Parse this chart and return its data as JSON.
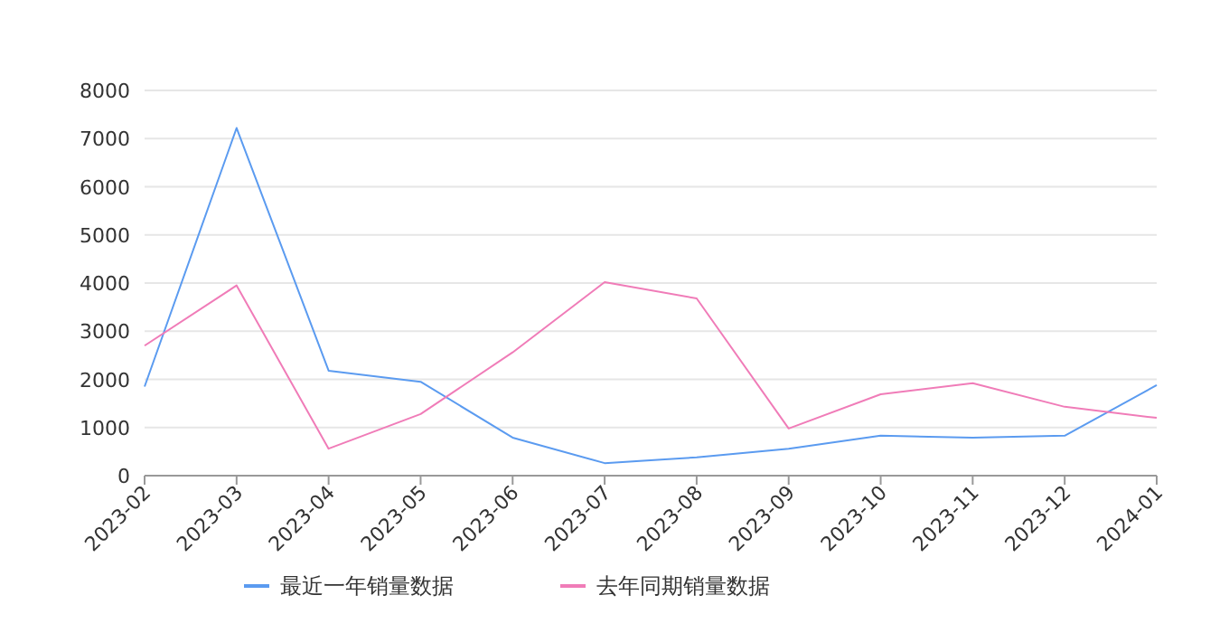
{
  "chart_data": {
    "type": "line",
    "categories": [
      "2023-02",
      "2023-03",
      "2023-04",
      "2023-05",
      "2023-06",
      "2023-07",
      "2023-08",
      "2023-09",
      "2023-10",
      "2023-11",
      "2023-12",
      "2024-01"
    ],
    "series": [
      {
        "name": "最近一年销量数据",
        "color": "#5b9bf0",
        "values": [
          1850,
          7220,
          2180,
          1950,
          790,
          260,
          380,
          560,
          830,
          790,
          830,
          1880
        ]
      },
      {
        "name": "去年同期销量数据",
        "color": "#f07cb8",
        "values": [
          2700,
          3950,
          560,
          1280,
          2560,
          4020,
          3680,
          980,
          1690,
          1920,
          1430,
          1200
        ]
      }
    ],
    "ylim": [
      0,
      8000
    ],
    "yticks": [
      0,
      1000,
      2000,
      3000,
      4000,
      5000,
      6000,
      7000,
      8000
    ],
    "grid": "y",
    "legend": "bottom",
    "marker": "none"
  }
}
